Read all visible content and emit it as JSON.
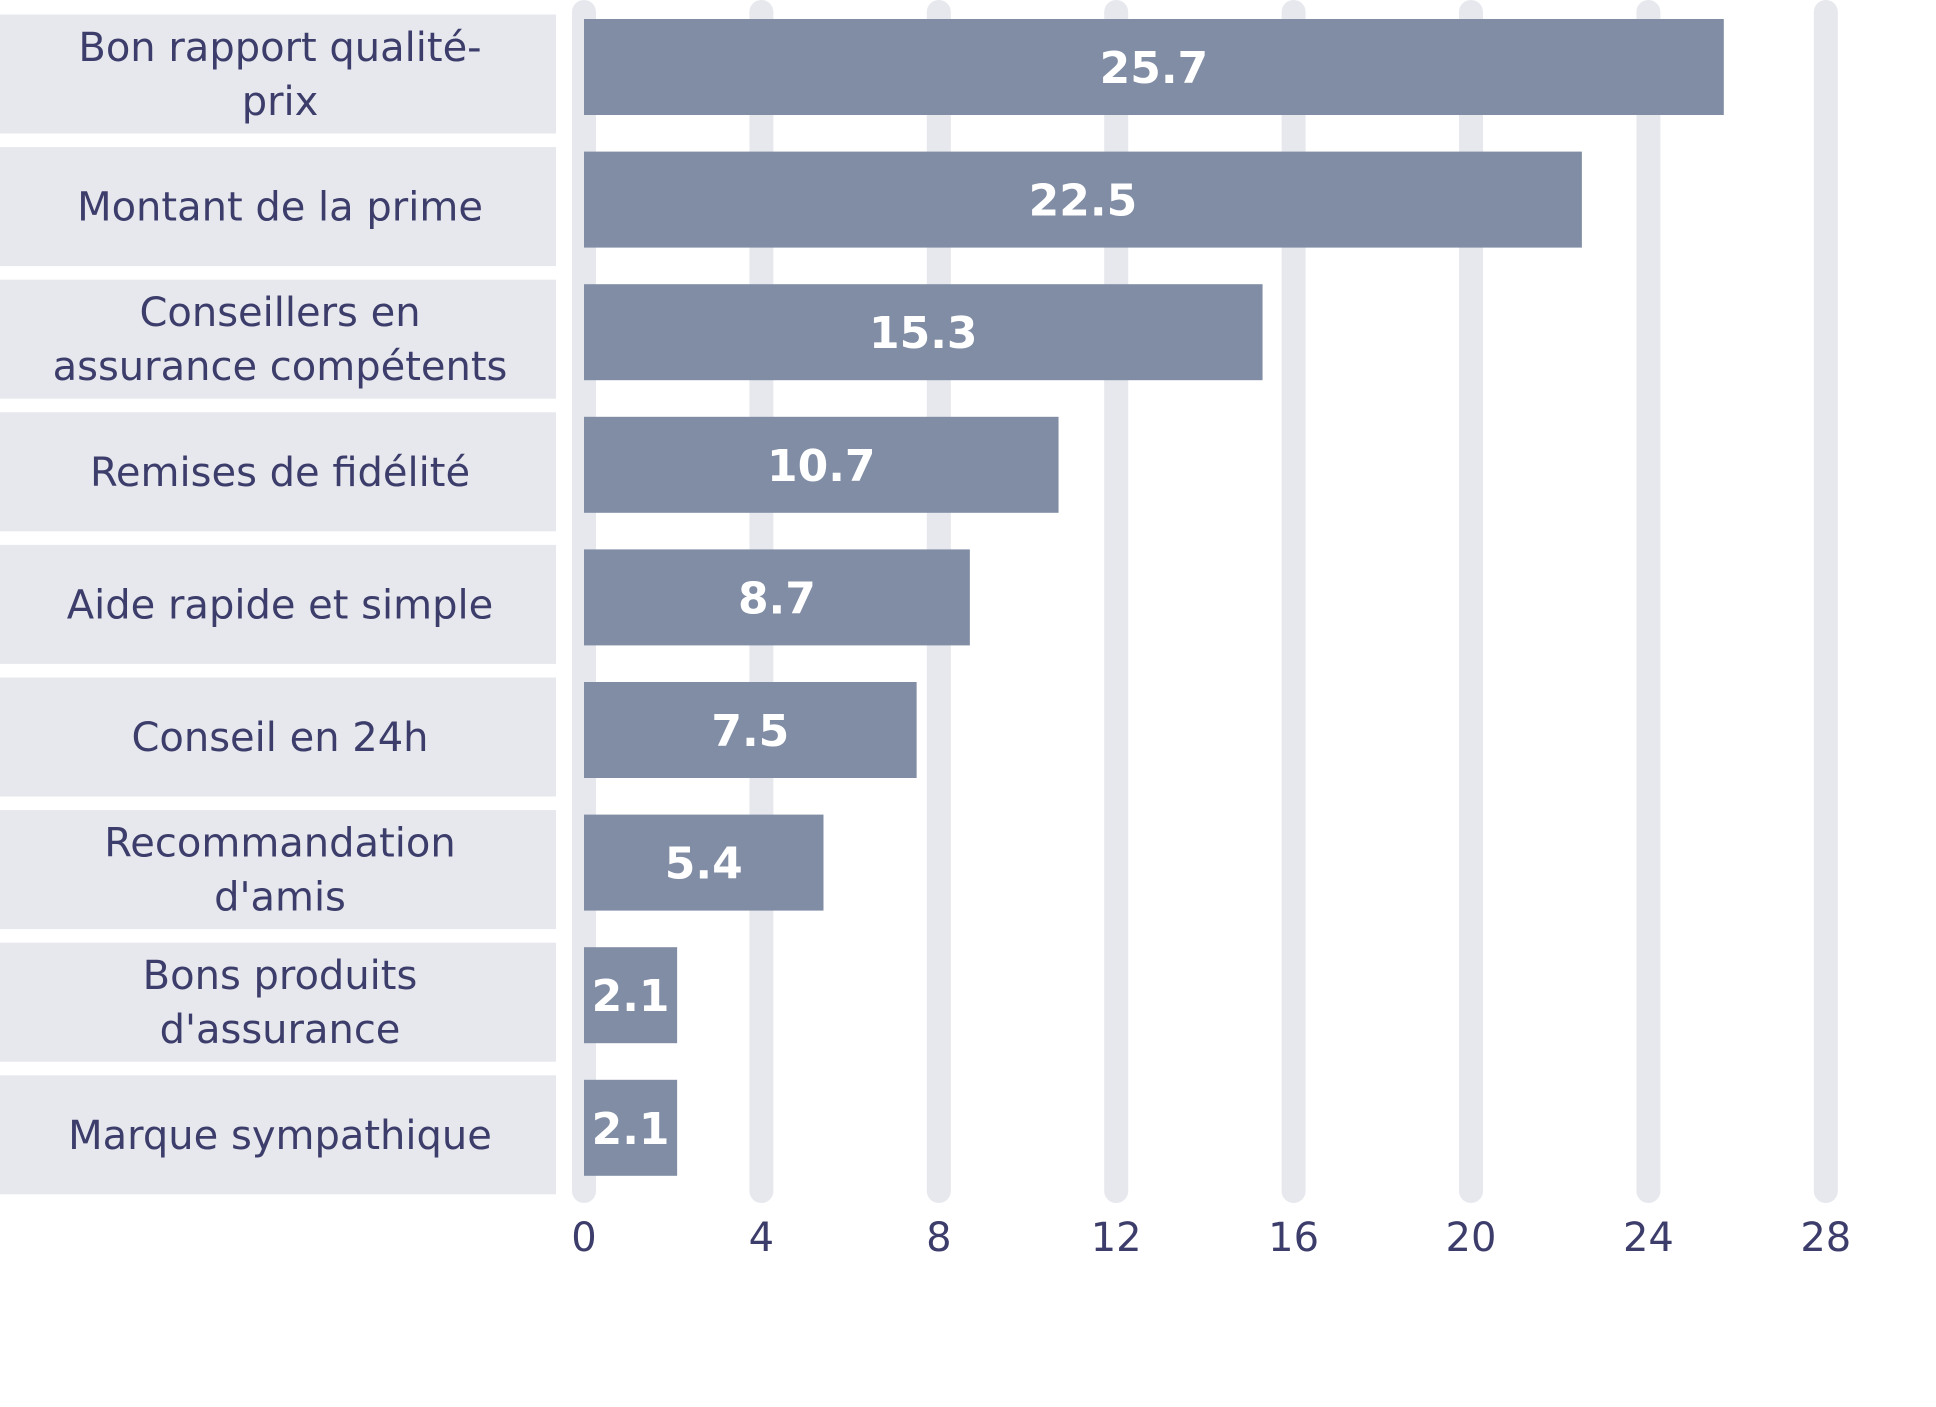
{
  "chart_data": {
    "type": "bar",
    "orientation": "horizontal",
    "categories": [
      "Bon rapport qualité-prix",
      "Montant de la prime",
      "Conseillers en assurance compétents",
      "Remises de fidélité",
      "Aide rapide et simple",
      "Conseil en 24h",
      "Recommandation d'amis",
      "Bons produits d'assurance",
      "Marque sympathique"
    ],
    "category_lines": [
      [
        "Bon rapport qualité-",
        "prix"
      ],
      [
        "Montant de la prime"
      ],
      [
        "Conseillers en",
        "assurance compétents"
      ],
      [
        "Remises de fidélité"
      ],
      [
        "Aide rapide et simple"
      ],
      [
        "Conseil en 24h"
      ],
      [
        "Recommandation",
        "d'amis"
      ],
      [
        "Bons produits",
        "d'assurance"
      ],
      [
        "Marque sympathique"
      ]
    ],
    "values": [
      25.7,
      22.5,
      15.3,
      10.7,
      8.7,
      7.5,
      5.4,
      2.1,
      2.1
    ],
    "value_labels": [
      "25.7",
      "22.5",
      "15.3",
      "10.7",
      "8.7",
      "7.5",
      "5.4",
      "2.1",
      "2.1"
    ],
    "xticks": [
      "0",
      "4",
      "8",
      "12",
      "16",
      "20",
      "24",
      "28"
    ],
    "xtick_values": [
      0,
      4,
      8,
      12,
      16,
      20,
      24,
      28
    ],
    "xlim": [
      0,
      28
    ],
    "title": "",
    "xlabel": "",
    "ylabel": "",
    "grid": "vertical",
    "legend": "none",
    "colors": {
      "bar": "#808da5",
      "label_box": "#e6e8ed",
      "grid": "#e6e8ed",
      "text": "#3d3d6b",
      "value_text": "#ffffff"
    }
  }
}
